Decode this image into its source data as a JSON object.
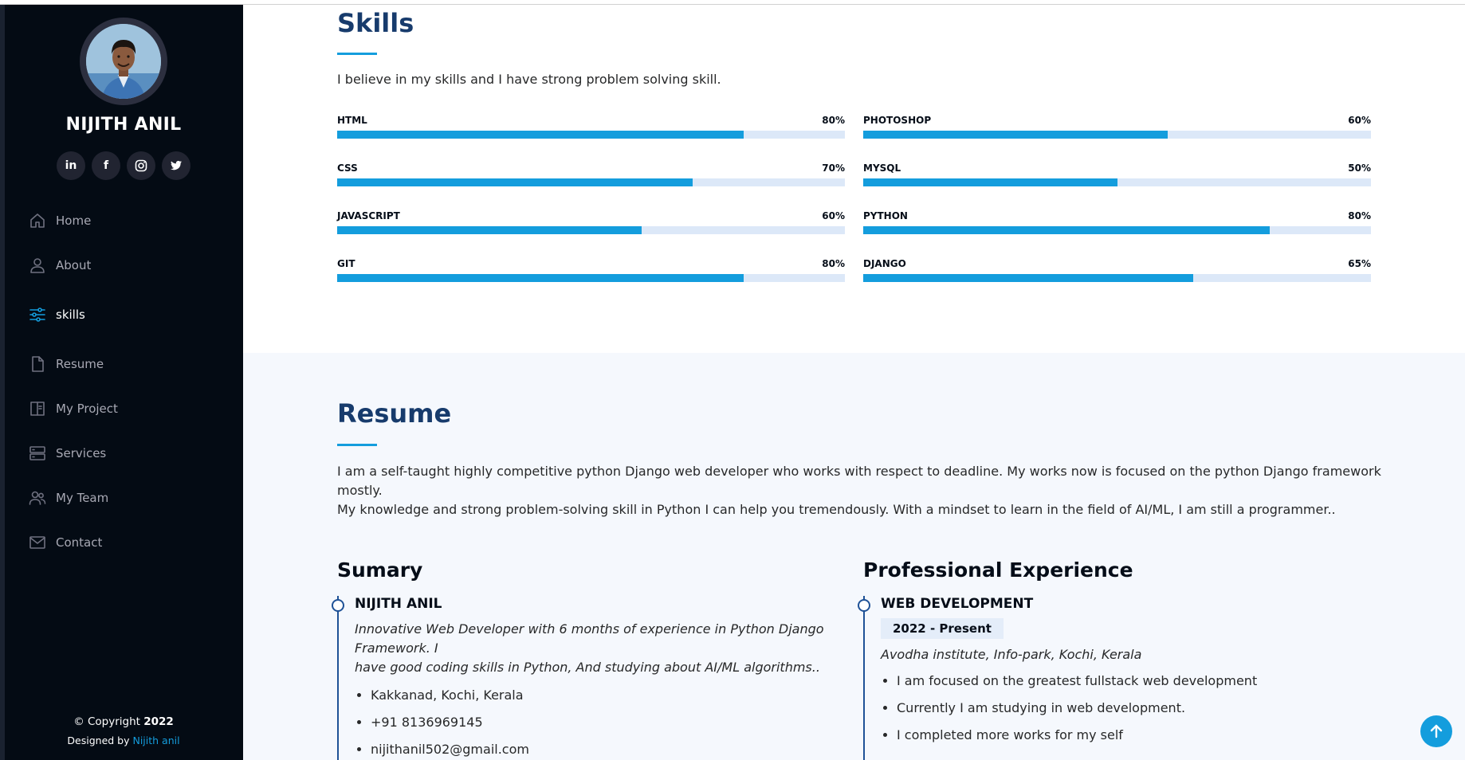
{
  "profile": {
    "name": "NIJITH ANIL",
    "socials": [
      {
        "icon": "linkedin-icon",
        "glyph": "in"
      },
      {
        "icon": "facebook-icon",
        "glyph": "f"
      },
      {
        "icon": "instagram-icon",
        "glyph": ""
      },
      {
        "icon": "twitter-icon",
        "glyph": ""
      }
    ]
  },
  "nav": {
    "items": [
      {
        "label": "Home",
        "icon": "home-icon"
      },
      {
        "label": "About",
        "icon": "user-icon"
      },
      {
        "label": "skills",
        "icon": "sliders-icon",
        "active": true
      },
      {
        "label": "Resume",
        "icon": "file-icon"
      },
      {
        "label": "My Project",
        "icon": "book-icon"
      },
      {
        "label": "Services",
        "icon": "server-icon"
      },
      {
        "label": "My Team",
        "icon": "team-icon"
      },
      {
        "label": "Contact",
        "icon": "envelope-icon"
      }
    ]
  },
  "footer": {
    "copyright_prefix": "© Copyright ",
    "year": "2022",
    "designed_prefix": "Designed by ",
    "designer": "Nijith anil"
  },
  "skills": {
    "title": "Skills",
    "description": "I believe in my skills and I have strong problem solving skill.",
    "items": [
      {
        "name": "HTML",
        "percent_label": "80%",
        "value": 80
      },
      {
        "name": "PHOTOSHOP",
        "percent_label": "60%",
        "value": 60
      },
      {
        "name": "CSS",
        "percent_label": "70%",
        "value": 70
      },
      {
        "name": "MYSQL",
        "percent_label": "50%",
        "value": 50
      },
      {
        "name": "JAVASCRIPT",
        "percent_label": "60%",
        "value": 60
      },
      {
        "name": "PYTHON",
        "percent_label": "80%",
        "value": 80
      },
      {
        "name": "GIT",
        "percent_label": "80%",
        "value": 80
      },
      {
        "name": "DJANGO",
        "percent_label": "65%",
        "value": 65
      }
    ]
  },
  "resume": {
    "title": "Resume",
    "description_line1": "I am a self-taught highly competitive python Django web developer who works with respect to deadline. My works now is focused on the python Django framework mostly.",
    "description_line2": "My knowledge and strong problem-solving skill in Python I can help you tremendously. With a mindset to learn in the field of AI/ML, I am still a programmer..",
    "summary": {
      "heading": "Sumary",
      "name": "NIJITH ANIL",
      "bio_line1": "Innovative Web Developer with 6 months of experience in Python Django Framework. I",
      "bio_line2": "have good coding skills in Python, And studying about AI/ML algorithms..",
      "details": [
        "Kakkanad, Kochi, Kerala",
        "+91 8136969145",
        "nijithanil502@gmail.com"
      ]
    },
    "experience": {
      "heading": "Professional Experience",
      "role": "WEB DEVELOPMENT",
      "period": "2022 - Present",
      "place": "Avodha institute, Info-park, Kochi, Kerala",
      "points": [
        "I am focused on the greatest fullstack web development",
        "Currently I am studying in web development.",
        "I completed more works for my self"
      ]
    }
  },
  "colors": {
    "sidebar_bg": "#040b14",
    "accent": "#149ddd",
    "title": "#173b6c",
    "resume_bg": "#f5f8fd"
  },
  "back_to_top_icon": "arrow-up-icon"
}
